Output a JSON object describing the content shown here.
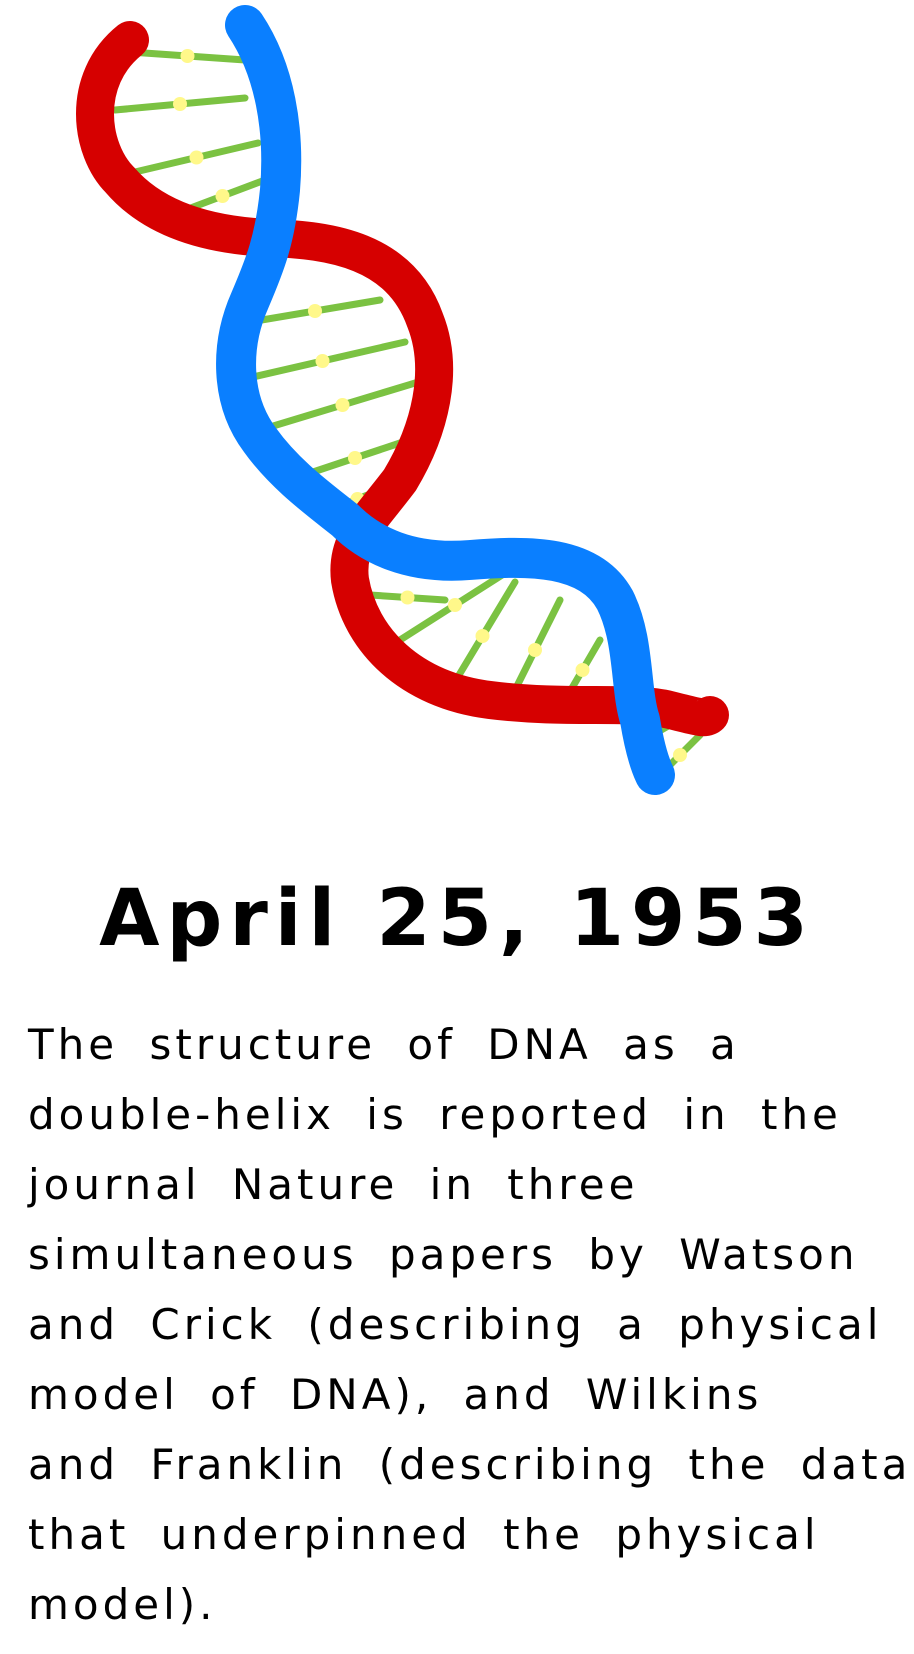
{
  "illustration": {
    "colors": {
      "strand_red": "#d60000",
      "strand_blue": "#0a7fff",
      "rungs": "#7bc242",
      "rung_dots": "#fff88a"
    }
  },
  "date": "April 25, 1953",
  "description_lines": [
    "The structure of DNA as a",
    "double-helix is reported in the",
    "journal Nature in three",
    "simultaneous papers by Watson",
    "and Crick (describing a physical",
    "model of DNA), and Wilkins",
    "and Franklin (describing the data",
    "that underpinned the physical",
    "model)."
  ]
}
